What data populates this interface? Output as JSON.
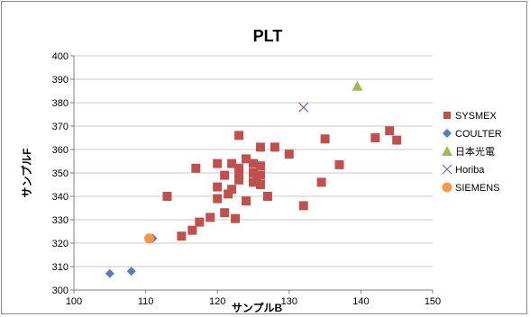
{
  "chart_data": {
    "type": "scatter",
    "title": "PLT",
    "xlabel": "サンプルB",
    "ylabel": "サンプルF",
    "xlim": [
      100,
      150
    ],
    "ylim": [
      300,
      400
    ],
    "xticks": [
      100,
      110,
      120,
      130,
      140,
      150
    ],
    "yticks": [
      300,
      310,
      320,
      330,
      340,
      350,
      360,
      370,
      380,
      390,
      400
    ],
    "grid": true,
    "legend_position": "right",
    "series": [
      {
        "name": "SYSMEX",
        "marker": "square",
        "color": "#C0504D",
        "points": [
          [
            113,
            340
          ],
          [
            115,
            323
          ],
          [
            116.5,
            325.5
          ],
          [
            117,
            352
          ],
          [
            117.5,
            329
          ],
          [
            119,
            331
          ],
          [
            120,
            354
          ],
          [
            120,
            339
          ],
          [
            120,
            344
          ],
          [
            121,
            349
          ],
          [
            121,
            333
          ],
          [
            121.5,
            341
          ],
          [
            122,
            354
          ],
          [
            122,
            343
          ],
          [
            122.5,
            330.5
          ],
          [
            123,
            366
          ],
          [
            123,
            350
          ],
          [
            123,
            347
          ],
          [
            123,
            352
          ],
          [
            124,
            356
          ],
          [
            124,
            338
          ],
          [
            125,
            354
          ],
          [
            125,
            350
          ],
          [
            125,
            346
          ],
          [
            125.5,
            348
          ],
          [
            126,
            361
          ],
          [
            126,
            353
          ],
          [
            126,
            349
          ],
          [
            126,
            345
          ],
          [
            127,
            340
          ],
          [
            128,
            361
          ],
          [
            130,
            358
          ],
          [
            132,
            336
          ],
          [
            134.5,
            346
          ],
          [
            135,
            364.5
          ],
          [
            137,
            353.5
          ],
          [
            142,
            365
          ],
          [
            144,
            368
          ],
          [
            145,
            364
          ]
        ]
      },
      {
        "name": "COULTER",
        "marker": "diamond",
        "color": "#4F81BD",
        "points": [
          [
            105,
            307
          ],
          [
            108,
            308
          ],
          [
            111,
            322
          ]
        ]
      },
      {
        "name": "日本光電",
        "marker": "triangle",
        "color": "#9BBB59",
        "points": [
          [
            139.5,
            387
          ]
        ]
      },
      {
        "name": "Horiba",
        "marker": "x",
        "color": "#8064A2",
        "points": [
          [
            132,
            378
          ]
        ]
      },
      {
        "name": "SIEMENS",
        "marker": "circle",
        "color": "#F79646",
        "points": [
          [
            110.5,
            322
          ]
        ]
      }
    ]
  }
}
